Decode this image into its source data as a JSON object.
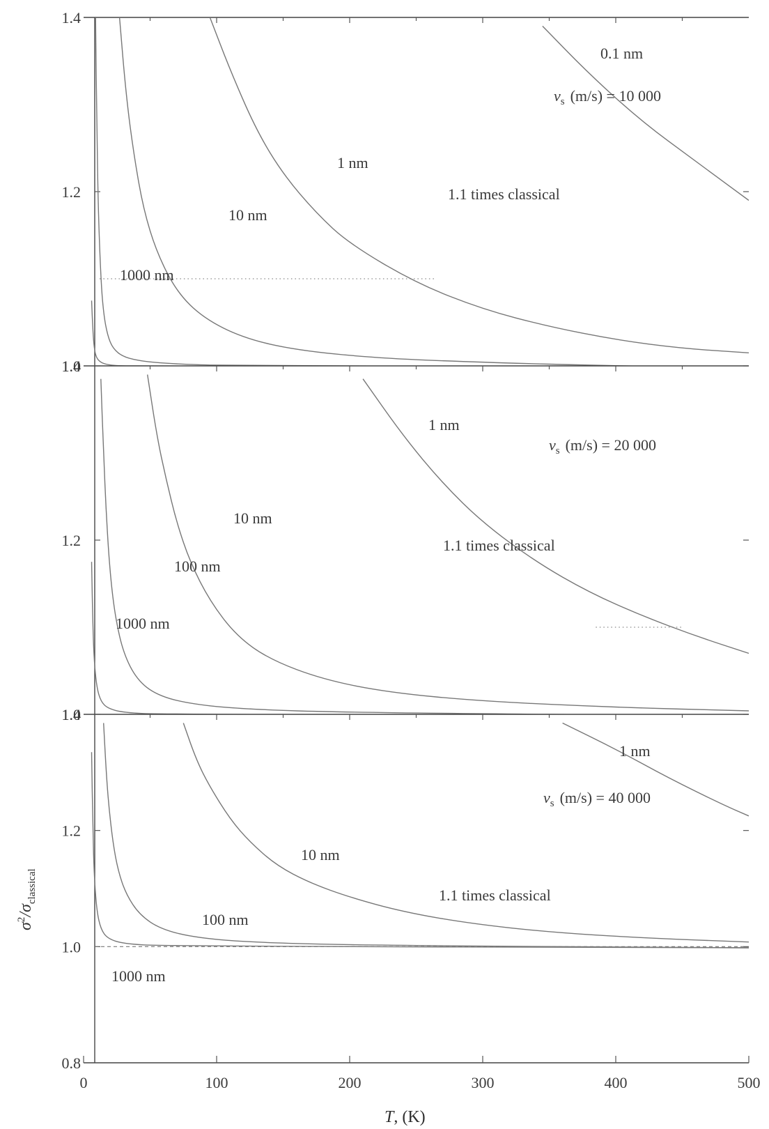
{
  "chart_data": [
    {
      "type": "line",
      "panel": "top",
      "annotation": "v_s (m/s) = 10 000",
      "annotation_parts": {
        "v": "v",
        "sub": "s",
        "rest": "(m/s) = 10 000"
      },
      "ylim": [
        1.0,
        1.4
      ],
      "yticks": [
        1.0,
        1.2,
        1.4
      ],
      "ytick_labels": [
        "1.0",
        "1.2",
        "1.4"
      ],
      "xlim": [
        0,
        500
      ],
      "reference_line": {
        "y": 1.0,
        "style": "dashed"
      },
      "threshold": {
        "y": 1.1,
        "x_from": 12,
        "x_to": 265,
        "label": "1.1 times classical"
      },
      "series": [
        {
          "name": "0.1 nm",
          "x": [
            345,
            380,
            420,
            460,
            500
          ],
          "y": [
            1.39,
            1.335,
            1.28,
            1.235,
            1.19
          ]
        },
        {
          "name": "1 nm",
          "x": [
            95,
            110,
            130,
            150,
            175,
            200,
            250,
            300,
            350,
            400,
            450,
            500
          ],
          "y": [
            1.4,
            1.34,
            1.27,
            1.22,
            1.175,
            1.14,
            1.095,
            1.065,
            1.045,
            1.03,
            1.02,
            1.015
          ]
        },
        {
          "name": "10 nm",
          "x": [
            27,
            32,
            38,
            45,
            55,
            70,
            90,
            120,
            160,
            220,
            300,
            400,
            500
          ],
          "y": [
            1.4,
            1.31,
            1.24,
            1.18,
            1.13,
            1.085,
            1.055,
            1.032,
            1.018,
            1.009,
            1.004,
            1.0,
            0.998
          ]
        },
        {
          "name": "",
          "x": [
            9,
            10,
            11,
            13,
            15,
            18,
            22,
            30,
            45,
            70,
            120,
            500
          ],
          "y": [
            1.4,
            1.27,
            1.18,
            1.1,
            1.06,
            1.035,
            1.02,
            1.01,
            1.005,
            1.002,
            1.0,
            0.998
          ]
        },
        {
          "name": "1000 nm",
          "x": [
            6,
            7,
            8,
            9.5,
            12,
            16,
            25,
            50,
            500
          ],
          "y": [
            1.075,
            1.04,
            1.02,
            1.01,
            1.005,
            1.002,
            1.0,
            1.0,
            0.998
          ]
        }
      ]
    },
    {
      "type": "line",
      "panel": "middle",
      "annotation": "v_s (m/s) = 20 000",
      "annotation_parts": {
        "v": "v",
        "sub": "s",
        "rest": "(m/s) = 20 000"
      },
      "ylim": [
        1.0,
        1.4
      ],
      "yticks": [
        1.0,
        1.2,
        1.4
      ],
      "ytick_labels": [
        "1.0",
        "1.2",
        "1.4"
      ],
      "xlim": [
        0,
        500
      ],
      "reference_line": {
        "y": 1.0,
        "style": "dashed"
      },
      "threshold": {
        "y": 1.1,
        "x_from": 385,
        "x_to": 450,
        "label": "1.1 times classical"
      },
      "series": [
        {
          "name": "1 nm",
          "x": [
            210,
            240,
            270,
            300,
            340,
            380,
            420,
            460,
            500
          ],
          "y": [
            1.385,
            1.32,
            1.265,
            1.22,
            1.175,
            1.14,
            1.113,
            1.09,
            1.07
          ]
        },
        {
          "name": "10 nm",
          "x": [
            48,
            55,
            62,
            70,
            80,
            95,
            115,
            140,
            180,
            230,
            300,
            400,
            500
          ],
          "y": [
            1.39,
            1.32,
            1.27,
            1.22,
            1.175,
            1.13,
            1.09,
            1.063,
            1.04,
            1.025,
            1.015,
            1.008,
            1.004
          ]
        },
        {
          "name": "100 nm",
          "x": [
            13,
            15,
            17,
            20,
            24,
            30,
            40,
            55,
            80,
            120,
            200,
            500
          ],
          "y": [
            1.385,
            1.3,
            1.23,
            1.16,
            1.11,
            1.07,
            1.04,
            1.022,
            1.012,
            1.006,
            1.002,
            0.998
          ]
        },
        {
          "name": "1000 nm",
          "x": [
            6,
            7,
            8,
            10,
            13,
            18,
            30,
            60,
            500
          ],
          "y": [
            1.175,
            1.1,
            1.06,
            1.03,
            1.015,
            1.007,
            1.002,
            1.0,
            0.998
          ]
        }
      ]
    },
    {
      "type": "line",
      "panel": "bottom",
      "annotation": "v_s (m/s) = 40 000",
      "annotation_parts": {
        "v": "v",
        "sub": "s",
        "rest": "(m/s) = 40 000"
      },
      "ylim": [
        0.8,
        1.4
      ],
      "yticks": [
        0.8,
        1.0,
        1.2,
        1.4
      ],
      "ytick_labels": [
        "0.8",
        "1.0",
        "1.2",
        "1.4"
      ],
      "xlim": [
        0,
        500
      ],
      "xticks": [
        0,
        100,
        200,
        300,
        400,
        500
      ],
      "xtick_labels": [
        "0",
        "100",
        "200",
        "300",
        "400",
        "500"
      ],
      "xlabel": "T, (K)",
      "ylabel": "σ²/σ²classical",
      "reference_line": {
        "y": 1.0,
        "style": "dashed"
      },
      "threshold": {
        "label": "1.1 times classical"
      },
      "series": [
        {
          "name": "1 nm",
          "x": [
            360,
            400,
            440,
            480,
            500
          ],
          "y": [
            1.385,
            1.34,
            1.29,
            1.245,
            1.225
          ]
        },
        {
          "name": "10 nm",
          "x": [
            75,
            85,
            95,
            110,
            125,
            145,
            170,
            200,
            240,
            290,
            350,
            420,
            500
          ],
          "y": [
            1.385,
            1.32,
            1.275,
            1.22,
            1.18,
            1.14,
            1.11,
            1.085,
            1.06,
            1.04,
            1.025,
            1.015,
            1.008
          ]
        },
        {
          "name": "100 nm",
          "x": [
            15,
            17,
            19,
            22,
            26,
            32,
            42,
            58,
            85,
            130,
            220,
            500
          ],
          "y": [
            1.385,
            1.3,
            1.24,
            1.18,
            1.13,
            1.09,
            1.055,
            1.03,
            1.015,
            1.007,
            1.002,
            0.998
          ]
        },
        {
          "name": "1000 nm",
          "x": [
            6,
            7,
            8,
            10,
            13,
            18,
            30,
            60,
            500
          ],
          "y": [
            1.335,
            1.2,
            1.12,
            1.06,
            1.03,
            1.014,
            1.005,
            1.001,
            0.998
          ]
        }
      ]
    }
  ],
  "labels": {
    "top": {
      "c01": "0.1 nm",
      "c1": "1 nm",
      "c10": "10 nm",
      "c1000": "1000 nm",
      "threshold": "1.1 times classical"
    },
    "middle": {
      "c1": "1 nm",
      "c10": "10 nm",
      "c100": "100 nm",
      "c1000": "1000 nm",
      "threshold": "1.1 times classical"
    },
    "bottom": {
      "c1": "1 nm",
      "c10": "10 nm",
      "c100": "100 nm",
      "c1000": "1000 nm",
      "threshold": "1.1 times classical"
    }
  },
  "axis": {
    "xlabel_T": "T",
    "xlabel_rest": ", (K)",
    "ylabel_sigma": "σ",
    "ylabel_sup": "2",
    "ylabel_slash": "/σ",
    "ylabel_sub": "classical"
  }
}
